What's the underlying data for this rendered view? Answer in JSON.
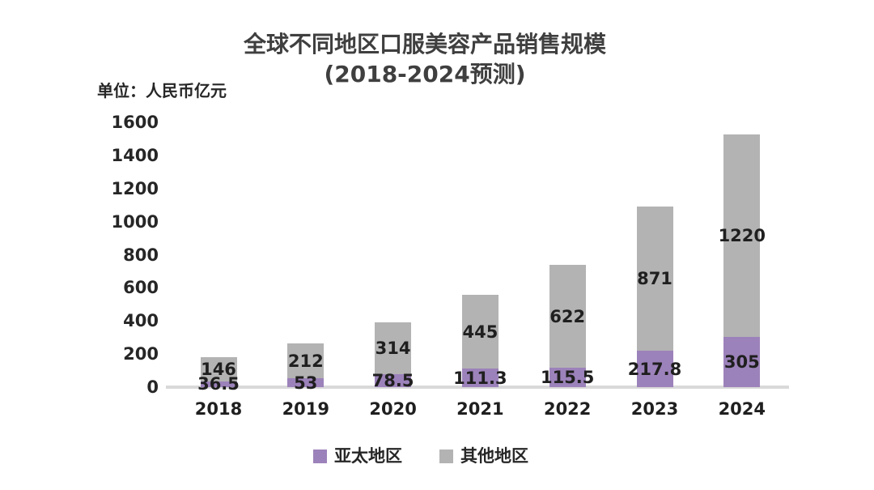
{
  "title": {
    "line1": "全球不同地区口服美容产品销售规模",
    "line2": "(2018-2024预测)"
  },
  "unit_label": "单位：人民币亿元",
  "colors": {
    "apac": "#9c82ba",
    "other": "#b3b3b3",
    "axis_line": "#d9d9d9",
    "title_text": "#3f3f3f",
    "label_text": "#1f1f1f",
    "background": "#ffffff"
  },
  "chart_data": {
    "type": "bar",
    "stacked": true,
    "title": "全球不同地区口服美容产品销售规模 (2018-2024预测)",
    "unit": "单位：人民币亿元",
    "categories": [
      "2018",
      "2019",
      "2020",
      "2021",
      "2022",
      "2023",
      "2024"
    ],
    "series": [
      {
        "name": "亚太地区",
        "color": "#9c82ba",
        "values": [
          36.5,
          53,
          78.5,
          111.3,
          115.5,
          217.8,
          305
        ]
      },
      {
        "name": "其他地区",
        "color": "#b3b3b3",
        "values": [
          146,
          212,
          314,
          445,
          622,
          871,
          1220
        ]
      }
    ],
    "data_labels": true,
    "ylim": [
      0,
      1600
    ],
    "yticks": [
      0,
      200,
      400,
      600,
      800,
      1000,
      1200,
      1400,
      1600
    ],
    "grid": false,
    "legend_position": "bottom"
  }
}
